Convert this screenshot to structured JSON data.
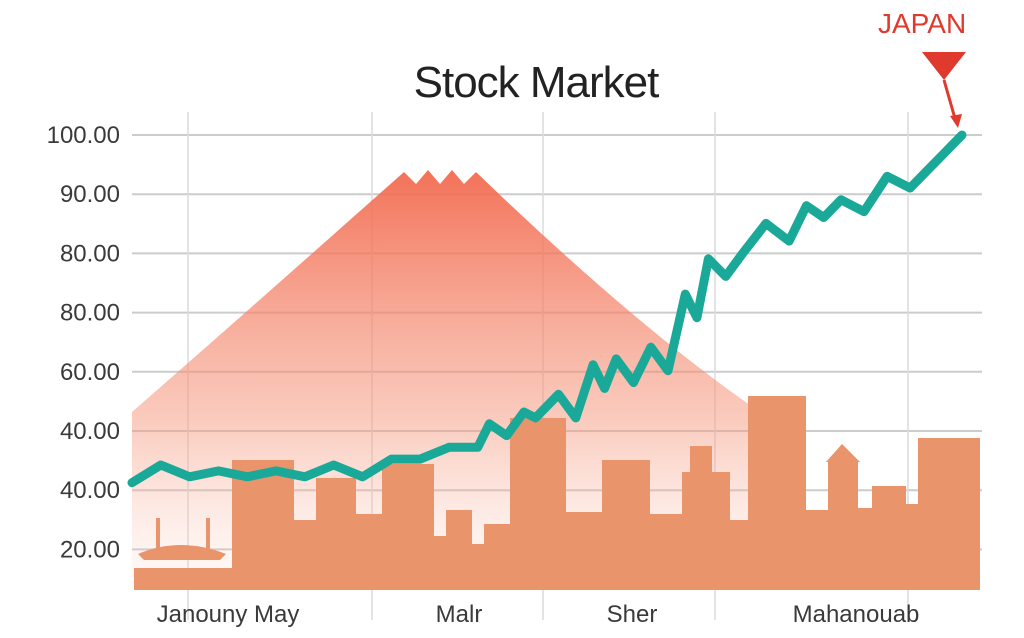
{
  "chart_data": {
    "type": "line",
    "title": "Stock Market",
    "annotation": "JAPAN",
    "y_tick_labels": [
      "100.00",
      "90.00",
      "80.00",
      "80.00",
      "60.00",
      "40.00",
      "40.00",
      "20.00"
    ],
    "x_tick_labels": [
      "Janouny May",
      "Malr",
      "Sher",
      "Mahanouab"
    ],
    "ylim": [
      10,
      100
    ],
    "grid": true,
    "colors": {
      "line": "#1aa998",
      "mountain": "#f26a4f",
      "skyline": "#e9946a",
      "annotation": "#e03a2e",
      "grid": "#cccccc"
    },
    "series": [
      {
        "x": [
          0,
          0.05,
          0.1,
          0.15,
          0.2,
          0.25,
          0.3,
          0.35,
          0.4,
          0.45,
          0.5,
          0.55,
          0.6,
          0.62,
          0.65,
          0.68,
          0.7,
          0.74,
          0.77,
          0.8,
          0.82,
          0.84,
          0.87,
          0.9,
          0.93,
          0.96,
          0.98,
          1.0,
          1.03,
          1.06,
          1.1,
          1.14,
          1.17,
          1.2,
          1.23,
          1.27,
          1.31,
          1.35,
          1.4,
          1.44
        ],
        "values": [
          41,
          44,
          42,
          43,
          42,
          43,
          42,
          44,
          42,
          45,
          45,
          47,
          47,
          51,
          49,
          53,
          52,
          56,
          52,
          61,
          57,
          62,
          58,
          64,
          60,
          73,
          69,
          79,
          76,
          80,
          85,
          82,
          88,
          86,
          89,
          87,
          93,
          91,
          96,
          100
        ]
      }
    ]
  }
}
